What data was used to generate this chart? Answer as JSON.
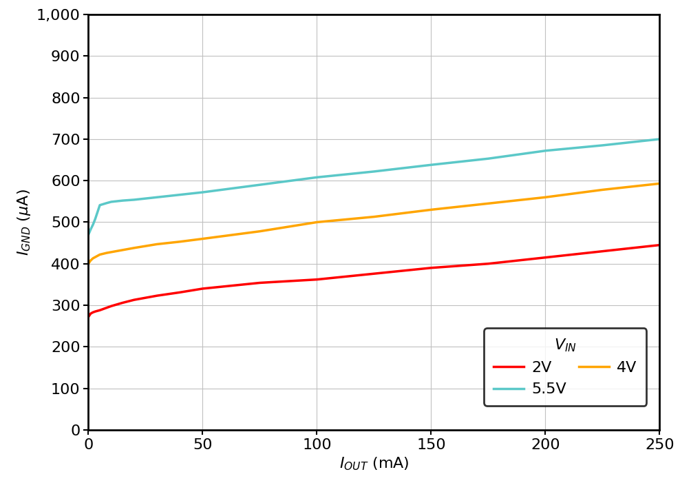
{
  "xlim": [
    0,
    250
  ],
  "ylim": [
    0,
    1000
  ],
  "xticks": [
    0,
    50,
    100,
    150,
    200,
    250
  ],
  "yticks": [
    0,
    100,
    200,
    300,
    400,
    500,
    600,
    700,
    800,
    900,
    1000
  ],
  "series": [
    {
      "label": "2V",
      "color": "#FF0000",
      "x": [
        0,
        0.5,
        1,
        2,
        3,
        5,
        8,
        10,
        15,
        20,
        30,
        40,
        50,
        75,
        100,
        125,
        150,
        175,
        200,
        225,
        250
      ],
      "y": [
        272,
        276,
        280,
        283,
        285,
        288,
        294,
        298,
        306,
        313,
        323,
        331,
        340,
        354,
        362,
        376,
        390,
        400,
        415,
        430,
        445
      ]
    },
    {
      "label": "4V",
      "color": "#FFA500",
      "x": [
        0,
        0.5,
        1,
        2,
        3,
        5,
        8,
        10,
        15,
        20,
        30,
        40,
        50,
        75,
        100,
        125,
        150,
        175,
        200,
        225,
        250
      ],
      "y": [
        400,
        404,
        408,
        413,
        416,
        422,
        426,
        428,
        433,
        438,
        447,
        453,
        460,
        478,
        500,
        513,
        530,
        545,
        560,
        578,
        593
      ]
    },
    {
      "label": "5.5V",
      "color": "#5BC8C8",
      "x": [
        0,
        0.5,
        1,
        2,
        3,
        5,
        8,
        10,
        15,
        20,
        30,
        40,
        50,
        75,
        100,
        125,
        150,
        175,
        200,
        225,
        250
      ],
      "y": [
        470,
        476,
        483,
        494,
        508,
        541,
        546,
        549,
        552,
        554,
        560,
        566,
        572,
        590,
        608,
        622,
        638,
        653,
        672,
        685,
        700
      ]
    }
  ],
  "line_width": 2.5,
  "background_color": "#FFFFFF",
  "grid_color": "#C0C0C0",
  "tick_fontsize": 16,
  "axis_label_fontsize": 16,
  "legend_fontsize": 16,
  "spine_linewidth": 2.0
}
